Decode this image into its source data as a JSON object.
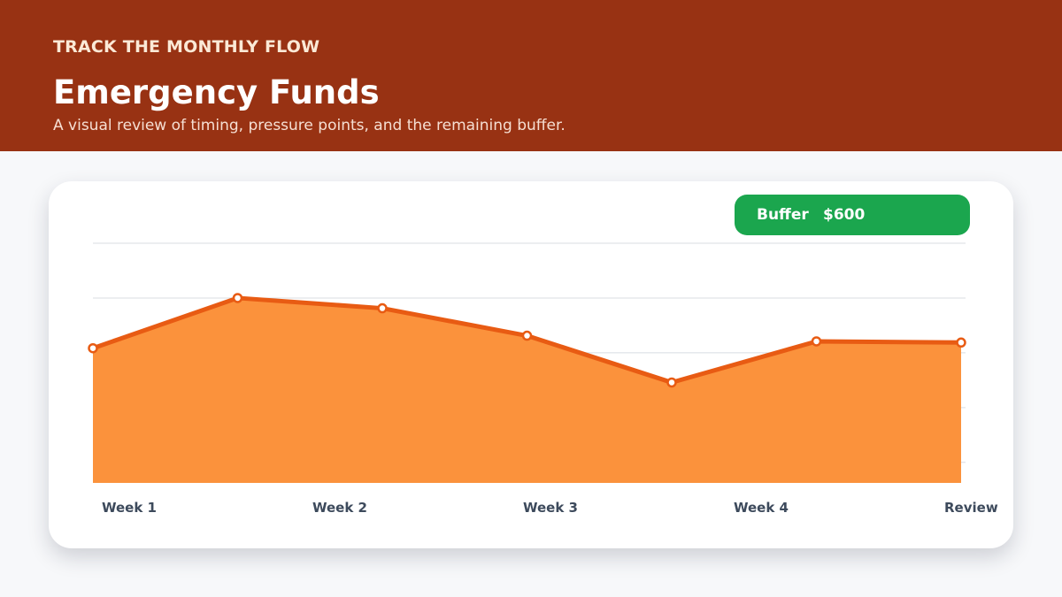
{
  "header": {
    "kicker": "TRACK THE MONTHLY FLOW",
    "title": "Emergency Funds",
    "subtitle": "A visual review of timing, pressure points, and the remaining buffer."
  },
  "badge": {
    "label": "Buffer",
    "value": "$600"
  },
  "colors": {
    "header_bg": "#983213",
    "area_fill": "#fb923c",
    "line": "#e85b13",
    "badge_bg": "#1ba64e",
    "grid": "#d8dce2"
  },
  "chart_data": {
    "type": "area",
    "tick_labels": [
      "Week 1",
      "Week 2",
      "Week 3",
      "Week 4",
      "Review"
    ],
    "values": [
      590,
      810,
      765,
      645,
      440,
      620,
      615
    ],
    "ylim": [
      0,
      1050
    ],
    "grid": true,
    "gridline_values": [
      1050,
      810,
      570,
      330,
      90
    ],
    "title": "",
    "xlabel": "",
    "ylabel": ""
  }
}
